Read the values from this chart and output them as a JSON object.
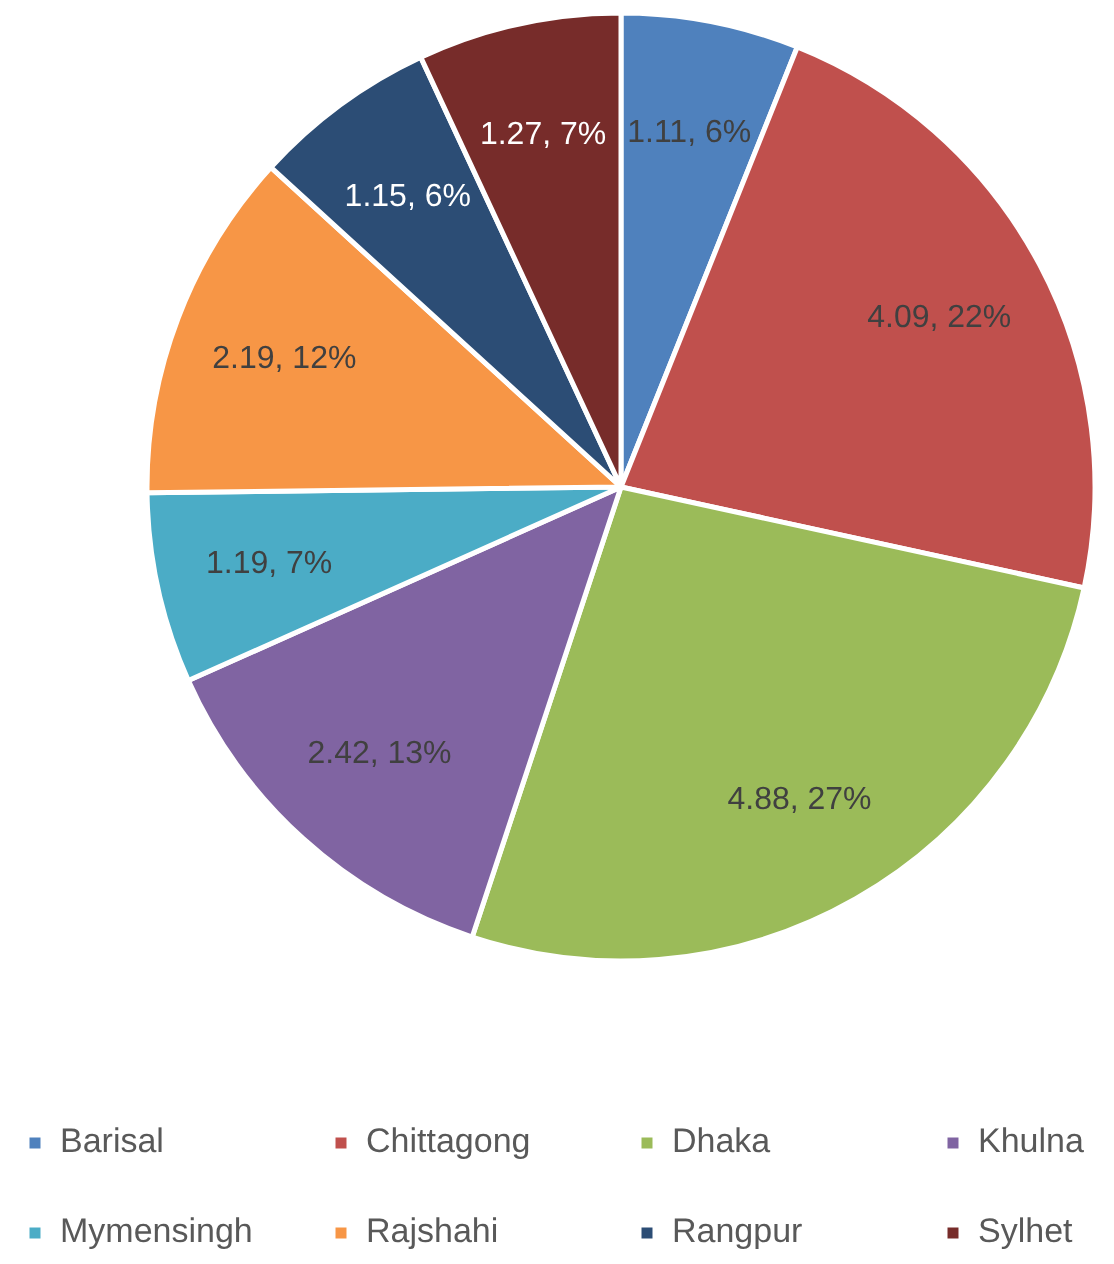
{
  "chart_data": {
    "type": "pie",
    "categories": [
      "Barisal",
      "Chittagong",
      "Dhaka",
      "Khulna",
      "Mymensingh",
      "Rajshahi",
      "Rangpur",
      "Sylhet"
    ],
    "values": [
      1.11,
      4.09,
      4.88,
      2.42,
      1.19,
      2.19,
      1.15,
      1.27
    ],
    "colors": [
      "#4f81bd",
      "#c0504d",
      "#9bbb59",
      "#8064a2",
      "#4bacc6",
      "#f79646",
      "#2c4d75",
      "#772c2a"
    ],
    "value_labels": [
      "1.11, 6%",
      "4.09, 22%",
      "4.88, 27%",
      "2.42, 13%",
      "1.19, 7%",
      "2.19, 12%",
      "1.15, 6%",
      "1.27, 7%"
    ],
    "legend": "bottom"
  }
}
